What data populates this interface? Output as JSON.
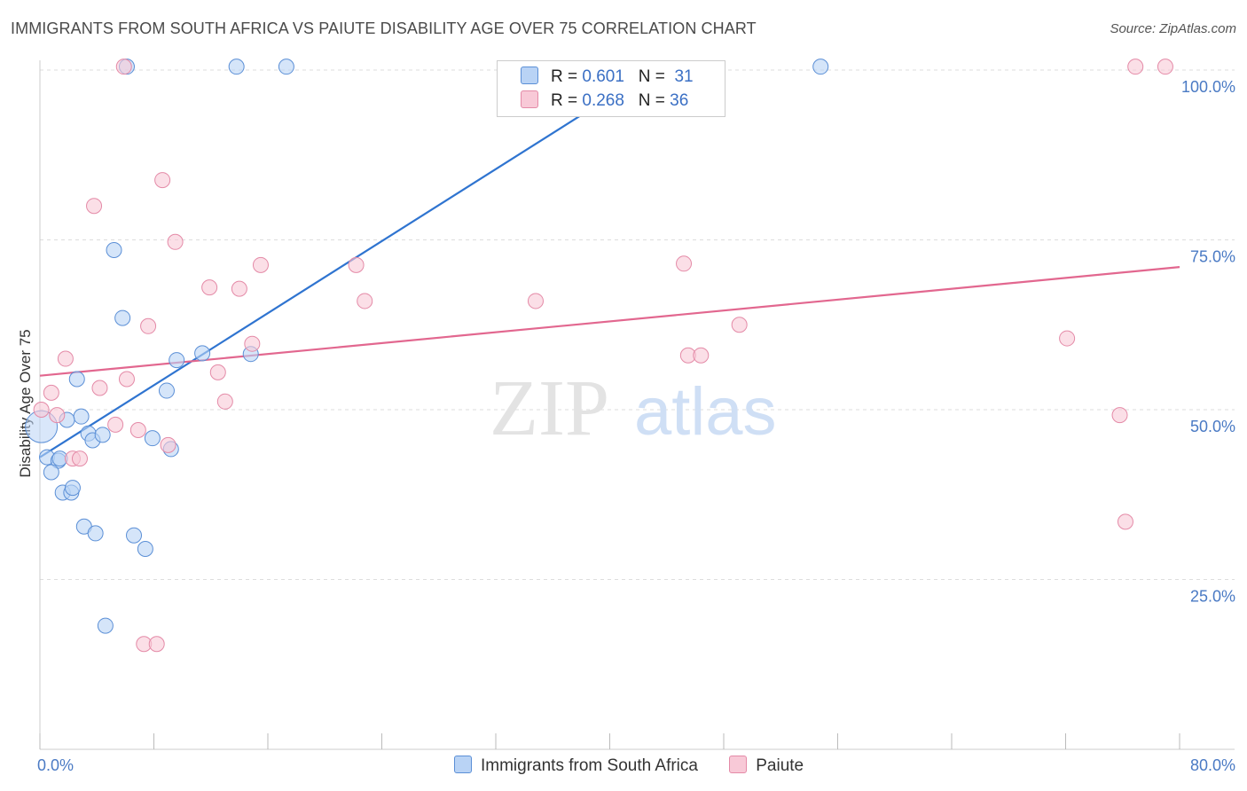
{
  "header": {
    "title": "IMMIGRANTS FROM SOUTH AFRICA VS PAIUTE DISABILITY AGE OVER 75 CORRELATION CHART",
    "source": "Source: ZipAtlas.com"
  },
  "legend_top": [
    {
      "r_label": "R =",
      "r_value": "0.601",
      "n_label": "N =",
      "n_value": "31"
    },
    {
      "r_label": "R =",
      "r_value": "0.268",
      "n_label": "N =",
      "n_value": "36"
    }
  ],
  "legend_bottom": [
    "Immigrants from South Africa",
    "Paiute"
  ],
  "watermark": {
    "zip": "ZIP",
    "atlas": "atlas"
  },
  "colors": {
    "blue_fill": "#b9d3f5",
    "blue_stroke": "#5b8fd6",
    "blue_line": "#2f74d0",
    "pink_fill": "#f8c9d7",
    "pink_stroke": "#e48aa7",
    "pink_line": "#e2678f",
    "tick_text": "#4a7ac4",
    "grid": "#dddddd"
  },
  "chart_data": {
    "type": "scatter",
    "title": "IMMIGRANTS FROM SOUTH AFRICA VS PAIUTE DISABILITY AGE OVER 75 CORRELATION CHART",
    "xlabel": "",
    "ylabel": "Disability Age Over 75",
    "xlim": [
      0,
      80
    ],
    "ylim": [
      0,
      103
    ],
    "x_tick_labels": [
      "0.0%",
      "80.0%"
    ],
    "y_ticks": [
      25,
      50,
      75,
      100
    ],
    "y_tick_labels": [
      "25.0%",
      "50.0%",
      "75.0%",
      "100.0%"
    ],
    "series": [
      {
        "name": "Immigrants from South Africa",
        "color": "#5b8fd6",
        "trend": {
          "x": [
            0,
            43
          ],
          "y": [
            43,
            100
          ]
        },
        "points": [
          {
            "x": 0.1,
            "y": 47.5,
            "big": true
          },
          {
            "x": 0.5,
            "y": 43
          },
          {
            "x": 1.3,
            "y": 42.5
          },
          {
            "x": 0.8,
            "y": 40.8
          },
          {
            "x": 1.4,
            "y": 42.8
          },
          {
            "x": 1.6,
            "y": 37.8
          },
          {
            "x": 2.2,
            "y": 37.8
          },
          {
            "x": 2.3,
            "y": 38.5
          },
          {
            "x": 2.6,
            "y": 54.5
          },
          {
            "x": 2.9,
            "y": 49
          },
          {
            "x": 1.9,
            "y": 48.5
          },
          {
            "x": 3.4,
            "y": 46.5
          },
          {
            "x": 3.7,
            "y": 45.5
          },
          {
            "x": 4.4,
            "y": 46.3
          },
          {
            "x": 3.1,
            "y": 32.8
          },
          {
            "x": 3.9,
            "y": 31.8
          },
          {
            "x": 4.6,
            "y": 18.2
          },
          {
            "x": 5.2,
            "y": 73.5
          },
          {
            "x": 5.8,
            "y": 63.5
          },
          {
            "x": 6.6,
            "y": 31.5
          },
          {
            "x": 7.4,
            "y": 29.5
          },
          {
            "x": 7.9,
            "y": 45.8
          },
          {
            "x": 8.9,
            "y": 52.8
          },
          {
            "x": 9.2,
            "y": 44.2
          },
          {
            "x": 9.6,
            "y": 57.3
          },
          {
            "x": 11.4,
            "y": 58.3
          },
          {
            "x": 14.8,
            "y": 58.2
          },
          {
            "x": 6.1,
            "y": 100.5
          },
          {
            "x": 13.8,
            "y": 100.5
          },
          {
            "x": 17.3,
            "y": 100.5
          },
          {
            "x": 54.8,
            "y": 100.5
          }
        ]
      },
      {
        "name": "Paiute",
        "color": "#e48aa7",
        "trend": {
          "x": [
            0,
            80
          ],
          "y": [
            55,
            71
          ]
        },
        "points": [
          {
            "x": 0.1,
            "y": 50
          },
          {
            "x": 0.8,
            "y": 52.5
          },
          {
            "x": 1.2,
            "y": 49.2
          },
          {
            "x": 1.8,
            "y": 57.5
          },
          {
            "x": 2.3,
            "y": 42.8
          },
          {
            "x": 2.8,
            "y": 42.8
          },
          {
            "x": 4.2,
            "y": 53.2
          },
          {
            "x": 5.3,
            "y": 47.8
          },
          {
            "x": 6.1,
            "y": 54.5
          },
          {
            "x": 6.9,
            "y": 47
          },
          {
            "x": 7.6,
            "y": 62.3
          },
          {
            "x": 9.0,
            "y": 44.8
          },
          {
            "x": 12.5,
            "y": 55.5
          },
          {
            "x": 13.0,
            "y": 51.2
          },
          {
            "x": 11.9,
            "y": 68
          },
          {
            "x": 14.0,
            "y": 67.8
          },
          {
            "x": 14.9,
            "y": 59.7
          },
          {
            "x": 15.5,
            "y": 71.3
          },
          {
            "x": 9.5,
            "y": 74.7
          },
          {
            "x": 8.6,
            "y": 83.8
          },
          {
            "x": 3.8,
            "y": 80
          },
          {
            "x": 5.9,
            "y": 100.5
          },
          {
            "x": 7.3,
            "y": 15.5
          },
          {
            "x": 8.2,
            "y": 15.5
          },
          {
            "x": 22.2,
            "y": 71.3
          },
          {
            "x": 22.8,
            "y": 66
          },
          {
            "x": 34.8,
            "y": 66
          },
          {
            "x": 45.2,
            "y": 71.5
          },
          {
            "x": 45.5,
            "y": 58
          },
          {
            "x": 46.4,
            "y": 58
          },
          {
            "x": 49.1,
            "y": 62.5
          },
          {
            "x": 72.1,
            "y": 60.5
          },
          {
            "x": 75.8,
            "y": 49.2
          },
          {
            "x": 76.2,
            "y": 33.5
          },
          {
            "x": 76.9,
            "y": 100.5
          },
          {
            "x": 79.0,
            "y": 100.5
          }
        ]
      }
    ]
  }
}
